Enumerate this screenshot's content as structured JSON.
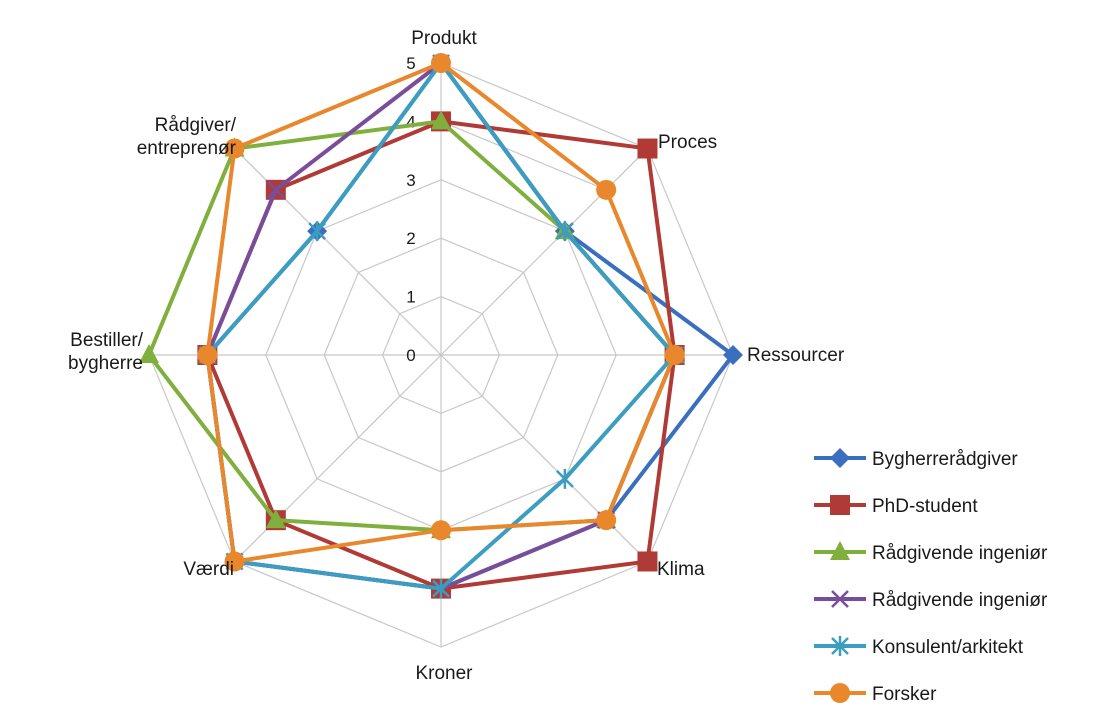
{
  "chart_data": {
    "type": "radar",
    "axes": [
      "Produkt",
      "Proces",
      "Ressourcer",
      "Klima",
      "Kroner",
      "Værdi",
      "Bestiller/ bygherre",
      "Rådgiver/ entreprenør"
    ],
    "axis_label_lines": [
      [
        "Produkt"
      ],
      [
        "Proces"
      ],
      [
        "Ressourcer"
      ],
      [
        "Klima"
      ],
      [
        "Kroner"
      ],
      [
        "Værdi"
      ],
      [
        "Bestiller/",
        "bygherre"
      ],
      [
        "Rådgiver/",
        "entreprenør"
      ]
    ],
    "range": [
      0,
      5
    ],
    "tick_values": [
      0,
      1,
      2,
      3,
      4,
      5
    ],
    "tick_labels": [
      "0",
      "1",
      "2",
      "3",
      "4",
      "5"
    ],
    "grid": true,
    "legend_position": "right",
    "series": [
      {
        "name": "Bygherrerådgiver",
        "color": "#3A6FBF",
        "marker": "diamond",
        "values": [
          5,
          3,
          5,
          4,
          4,
          5,
          4,
          3
        ]
      },
      {
        "name": "PhD-student",
        "color": "#B03A35",
        "marker": "square",
        "values": [
          4,
          5,
          4,
          5,
          4,
          4,
          4,
          4
        ]
      },
      {
        "name": "Rådgivende ingeniør",
        "color": "#7FAF3D",
        "marker": "triangle",
        "values": [
          4,
          3,
          4,
          4,
          3,
          4,
          5,
          5
        ]
      },
      {
        "name": "Rådgivende ingeniør",
        "color": "#7A4D9A",
        "marker": "x",
        "values": [
          5,
          3,
          4,
          4,
          4,
          5,
          4,
          4
        ]
      },
      {
        "name": "Konsulent/arkitekt",
        "color": "#3B9DC0",
        "marker": "star",
        "values": [
          5,
          3,
          4,
          3,
          4,
          5,
          4,
          3
        ]
      },
      {
        "name": "Forsker",
        "color": "#E8872C",
        "marker": "circle",
        "values": [
          5,
          4,
          4,
          4,
          3,
          5,
          4,
          5
        ]
      }
    ]
  }
}
